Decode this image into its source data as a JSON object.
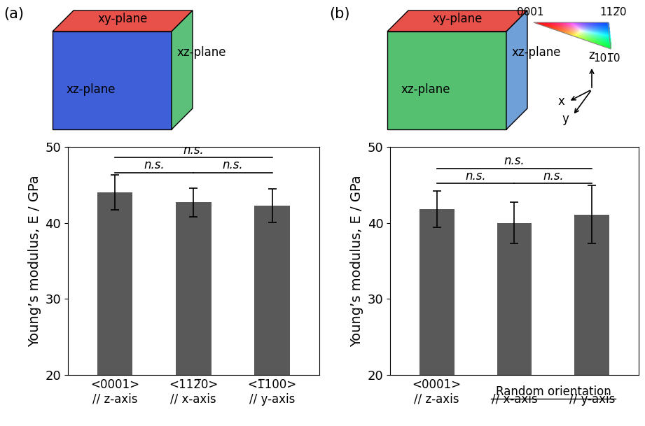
{
  "chart_data": [
    {
      "type": "bar",
      "title": "(a)",
      "categories": [
        "<0001>\n// z-axis",
        "<112̅0>\n// x-axis",
        "<1̅100>\n// y-axis"
      ],
      "values": [
        44.0,
        42.7,
        42.3
      ],
      "errors": [
        2.3,
        1.9,
        2.2
      ],
      "color": "#595959",
      "ylabel": "Young’s modulus, E / GPa",
      "ylim": [
        20,
        50
      ],
      "yticks": [
        20,
        30,
        40,
        50
      ],
      "significance": [
        {
          "from": "<0001>\n// z-axis",
          "to": "<112̅0>\n// x-axis",
          "label": "n.s."
        },
        {
          "from": "<112̅0>\n// x-axis",
          "to": "<1̅100>\n// y-axis",
          "label": "n.s."
        },
        {
          "from": "<0001>\n// z-axis",
          "to": "<1̅100>\n// y-axis",
          "label": "n.s."
        }
      ],
      "cube": {
        "top": "xy-plane",
        "front": "xz-plane",
        "side": "xz-plane"
      }
    },
    {
      "type": "bar",
      "title": "(b)",
      "categories": [
        "<0001>\n// z-axis",
        "// x-axis",
        "// y-axis"
      ],
      "values": [
        41.8,
        40.0,
        41.1
      ],
      "errors": [
        2.4,
        2.7,
        3.8
      ],
      "color": "#595959",
      "ylabel": "Young’s modulus, E / GPa",
      "ylim": [
        20,
        50
      ],
      "yticks": [
        20,
        30,
        40,
        50
      ],
      "category_groups": [
        {
          "label": "Random orientation",
          "categories": [
            "// x-axis",
            "// y-axis"
          ]
        }
      ],
      "significance": [
        {
          "from": "<0001>\n// z-axis",
          "to": "// x-axis",
          "label": "n.s."
        },
        {
          "from": "// x-axis",
          "to": "// y-axis",
          "label": "n.s."
        },
        {
          "from": "<0001>\n// z-axis",
          "to": "// y-axis",
          "label": "n.s."
        }
      ],
      "cube": {
        "top": "xy-plane",
        "front": "xz-plane",
        "side": "xz-plane"
      },
      "color_key": [
        "0001",
        "112̅0",
        "101̅0"
      ],
      "axes_triad": [
        "x",
        "y",
        "z"
      ]
    }
  ]
}
